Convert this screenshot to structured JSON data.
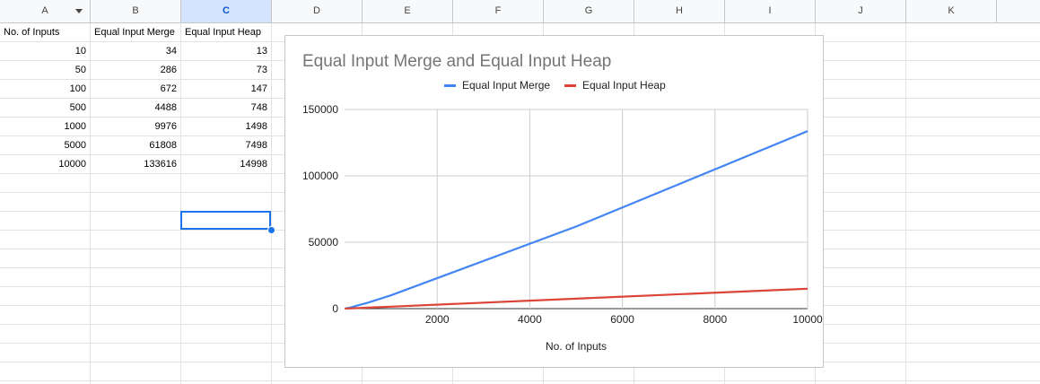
{
  "columns": [
    {
      "letter": "A",
      "width": 101
    },
    {
      "letter": "B",
      "width": 101
    },
    {
      "letter": "C",
      "width": 101,
      "selected": true
    },
    {
      "letter": "D",
      "width": 101
    },
    {
      "letter": "E",
      "width": 101
    },
    {
      "letter": "F",
      "width": 101
    },
    {
      "letter": "G",
      "width": 101
    },
    {
      "letter": "H",
      "width": 101
    },
    {
      "letter": "I",
      "width": 101
    },
    {
      "letter": "J",
      "width": 101
    },
    {
      "letter": "K",
      "width": 101
    }
  ],
  "sheet": {
    "header": [
      "No. of Inputs",
      "Equal Input Merge",
      "Equal Input Heap"
    ],
    "rows": [
      [
        "10",
        "34",
        "13"
      ],
      [
        "50",
        "286",
        "73"
      ],
      [
        "100",
        "672",
        "147"
      ],
      [
        "500",
        "4488",
        "748"
      ],
      [
        "1000",
        "9976",
        "1498"
      ],
      [
        "5000",
        "61808",
        "7498"
      ],
      [
        "10000",
        "133616",
        "14998"
      ]
    ]
  },
  "chart_data": {
    "type": "line",
    "title": "Equal Input Merge and Equal Input Heap",
    "xlabel": "No. of Inputs",
    "ylabel": "",
    "x": [
      10,
      50,
      100,
      500,
      1000,
      5000,
      10000
    ],
    "series": [
      {
        "name": "Equal Input Merge",
        "color": "#4285f4",
        "values": [
          34,
          286,
          672,
          4488,
          9976,
          61808,
          133616
        ]
      },
      {
        "name": "Equal Input Heap",
        "color": "#db4437",
        "values": [
          13,
          73,
          147,
          748,
          1498,
          7498,
          14998
        ]
      }
    ],
    "xlim": [
      0,
      10000
    ],
    "ylim": [
      0,
      150000
    ],
    "xticks": [
      "2000",
      "4000",
      "6000",
      "8000",
      "10000"
    ],
    "yticks": [
      "0",
      "50000",
      "100000",
      "150000"
    ],
    "grid": true,
    "legend": "top"
  }
}
